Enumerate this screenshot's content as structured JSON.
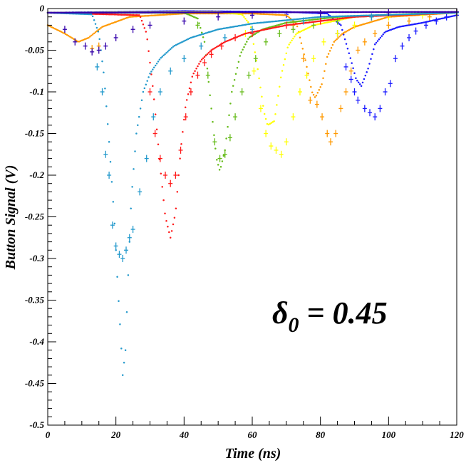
{
  "chart_data": {
    "type": "scatter",
    "title": "",
    "xlabel": "Time (ns)",
    "ylabel": "Button Signal (V)",
    "xlim": [
      0,
      120
    ],
    "ylim": [
      -0.5,
      0
    ],
    "x_ticks": [
      0,
      20,
      40,
      60,
      80,
      100,
      120
    ],
    "y_ticks": [
      0,
      -0.05,
      -0.1,
      -0.15,
      -0.2,
      -0.25,
      -0.3,
      -0.35,
      -0.4,
      -0.45,
      -0.5
    ],
    "x_tick_labels": [
      "0",
      "20",
      "40",
      "60",
      "80",
      "100",
      "120"
    ],
    "y_tick_labels": [
      "0",
      "-0.05",
      "-0.1",
      "-0.15",
      "-0.2",
      "-0.25",
      "-0.3",
      "-0.35",
      "-0.4",
      "-0.45",
      "-0.5"
    ],
    "annotation": {
      "symbol": "δ",
      "subscript": "0",
      "text": " = 0.45"
    },
    "grid": false,
    "series": [
      {
        "color": "#1a1aff",
        "curve": [
          [
            0,
            -0.005
          ],
          [
            40,
            -0.003
          ],
          [
            70,
            -0.004
          ],
          [
            82,
            -0.006
          ],
          [
            86,
            -0.02
          ],
          [
            88.5,
            -0.055
          ],
          [
            90.5,
            -0.085
          ],
          [
            92,
            -0.093
          ],
          [
            94,
            -0.072
          ],
          [
            96,
            -0.043
          ],
          [
            99,
            -0.028
          ],
          [
            103,
            -0.022
          ],
          [
            110,
            -0.017
          ],
          [
            120,
            -0.008
          ]
        ],
        "points": [
          [
            70,
            -0.007
          ],
          [
            80,
            -0.01
          ],
          [
            85,
            -0.03
          ],
          [
            87.5,
            -0.07
          ],
          [
            89,
            -0.085
          ],
          [
            90,
            -0.1
          ],
          [
            91,
            -0.11
          ],
          [
            93,
            -0.12
          ],
          [
            94.5,
            -0.125
          ],
          [
            96,
            -0.13
          ],
          [
            97.5,
            -0.12
          ],
          [
            99,
            -0.1
          ],
          [
            100.5,
            -0.09
          ],
          [
            102,
            -0.06
          ],
          [
            104,
            -0.045
          ],
          [
            106,
            -0.035
          ],
          [
            108,
            -0.027
          ],
          [
            111,
            -0.02
          ],
          [
            114,
            -0.015
          ],
          [
            117,
            -0.01
          ],
          [
            120,
            -0.008
          ]
        ]
      },
      {
        "color": "#ff9900",
        "curve": [
          [
            0,
            -0.02
          ],
          [
            5,
            -0.03
          ],
          [
            9,
            -0.04
          ],
          [
            12,
            -0.035
          ],
          [
            16,
            -0.022
          ],
          [
            24,
            -0.01
          ],
          [
            40,
            -0.006
          ],
          [
            60,
            -0.006
          ],
          [
            70,
            -0.008
          ],
          [
            73,
            -0.018
          ],
          [
            75.5,
            -0.06
          ],
          [
            77.5,
            -0.1
          ],
          [
            78.5,
            -0.107
          ],
          [
            80.5,
            -0.09
          ],
          [
            82,
            -0.058
          ],
          [
            84,
            -0.04
          ],
          [
            86.5,
            -0.03
          ],
          [
            90,
            -0.022
          ],
          [
            100,
            -0.01
          ],
          [
            120,
            -0.005
          ]
        ],
        "points": [
          [
            13,
            -0.048
          ],
          [
            15,
            -0.045
          ],
          [
            72,
            -0.02
          ],
          [
            75,
            -0.06
          ],
          [
            77,
            -0.11
          ],
          [
            79,
            -0.115
          ],
          [
            80.5,
            -0.13
          ],
          [
            82,
            -0.15
          ],
          [
            83,
            -0.16
          ],
          [
            84.5,
            -0.15
          ],
          [
            86,
            -0.12
          ],
          [
            87.5,
            -0.1
          ],
          [
            89,
            -0.075
          ],
          [
            91,
            -0.05
          ],
          [
            93,
            -0.04
          ],
          [
            96,
            -0.03
          ],
          [
            100,
            -0.02
          ],
          [
            106,
            -0.015
          ],
          [
            112,
            -0.01
          ],
          [
            120,
            -0.005
          ]
        ]
      },
      {
        "color": "#ffff00",
        "curve": [
          [
            0,
            -0.005
          ],
          [
            50,
            -0.004
          ],
          [
            57,
            -0.007
          ],
          [
            59.5,
            -0.02
          ],
          [
            61.5,
            -0.07
          ],
          [
            63.5,
            -0.125
          ],
          [
            64.5,
            -0.14
          ],
          [
            66.5,
            -0.135
          ],
          [
            68.5,
            -0.08
          ],
          [
            70.5,
            -0.045
          ],
          [
            73,
            -0.03
          ],
          [
            78,
            -0.02
          ],
          [
            90,
            -0.01
          ],
          [
            120,
            -0.004
          ]
        ],
        "points": [
          [
            58,
            -0.03
          ],
          [
            60.5,
            -0.075
          ],
          [
            62.5,
            -0.12
          ],
          [
            64,
            -0.15
          ],
          [
            65.5,
            -0.165
          ],
          [
            67,
            -0.17
          ],
          [
            68.5,
            -0.175
          ],
          [
            70,
            -0.16
          ],
          [
            72,
            -0.13
          ],
          [
            74,
            -0.1
          ],
          [
            76,
            -0.08
          ],
          [
            78,
            -0.06
          ],
          [
            81,
            -0.04
          ],
          [
            85,
            -0.03
          ],
          [
            90,
            -0.02
          ],
          [
            100,
            -0.01
          ],
          [
            110,
            -0.008
          ],
          [
            120,
            -0.005
          ]
        ]
      },
      {
        "color": "#66bb1a",
        "curve": [
          [
            0,
            -0.005
          ],
          [
            40,
            -0.005
          ],
          [
            44,
            -0.012
          ],
          [
            46,
            -0.04
          ],
          [
            48,
            -0.12
          ],
          [
            49.5,
            -0.18
          ],
          [
            50.5,
            -0.195
          ],
          [
            52,
            -0.17
          ],
          [
            54,
            -0.1
          ],
          [
            56.5,
            -0.055
          ],
          [
            59,
            -0.035
          ],
          [
            63,
            -0.025
          ],
          [
            70,
            -0.017
          ],
          [
            85,
            -0.01
          ],
          [
            120,
            -0.004
          ]
        ],
        "points": [
          [
            44,
            -0.02
          ],
          [
            47,
            -0.08
          ],
          [
            49,
            -0.16
          ],
          [
            50.5,
            -0.18
          ],
          [
            52,
            -0.175
          ],
          [
            53.5,
            -0.155
          ],
          [
            55,
            -0.13
          ],
          [
            57,
            -0.1
          ],
          [
            59,
            -0.08
          ],
          [
            61,
            -0.06
          ],
          [
            64,
            -0.04
          ],
          [
            68,
            -0.03
          ],
          [
            72,
            -0.025
          ],
          [
            78,
            -0.02
          ],
          [
            85,
            -0.015
          ],
          [
            95,
            -0.01
          ],
          [
            120,
            -0.005
          ]
        ]
      },
      {
        "color": "#ff1a1a",
        "curve": [
          [
            0,
            -0.005
          ],
          [
            27,
            -0.008
          ],
          [
            29,
            -0.03
          ],
          [
            31,
            -0.1
          ],
          [
            33,
            -0.19
          ],
          [
            34.5,
            -0.25
          ],
          [
            36,
            -0.275
          ],
          [
            37.5,
            -0.245
          ],
          [
            39,
            -0.17
          ],
          [
            40.5,
            -0.115
          ],
          [
            42.5,
            -0.08
          ],
          [
            45,
            -0.062
          ],
          [
            48,
            -0.05
          ],
          [
            52,
            -0.04
          ],
          [
            58,
            -0.03
          ],
          [
            70,
            -0.02
          ],
          [
            90,
            -0.01
          ],
          [
            120,
            -0.005
          ]
        ],
        "points": [
          [
            30,
            -0.1
          ],
          [
            31.5,
            -0.15
          ],
          [
            33,
            -0.18
          ],
          [
            34.5,
            -0.2
          ],
          [
            36,
            -0.21
          ],
          [
            37.5,
            -0.2
          ],
          [
            39,
            -0.17
          ],
          [
            40.5,
            -0.13
          ],
          [
            42,
            -0.1
          ],
          [
            44,
            -0.08
          ],
          [
            46,
            -0.065
          ],
          [
            48,
            -0.055
          ],
          [
            51,
            -0.045
          ],
          [
            55,
            -0.035
          ],
          [
            60,
            -0.03
          ],
          [
            70,
            -0.02
          ],
          [
            80,
            -0.015
          ],
          [
            95,
            -0.01
          ],
          [
            120,
            -0.005
          ]
        ]
      },
      {
        "color": "#2299cc",
        "curve": [
          [
            0,
            -0.005
          ],
          [
            13,
            -0.007
          ],
          [
            15,
            -0.03
          ],
          [
            16.5,
            -0.08
          ],
          [
            18,
            -0.16
          ],
          [
            19.5,
            -0.25
          ],
          [
            20.5,
            -0.33
          ],
          [
            21.5,
            -0.4
          ],
          [
            22,
            -0.44
          ],
          [
            22.8,
            -0.41
          ],
          [
            23.5,
            -0.33
          ],
          [
            24.5,
            -0.23
          ],
          [
            26,
            -0.15
          ],
          [
            28,
            -0.1
          ],
          [
            30,
            -0.078
          ],
          [
            33,
            -0.06
          ],
          [
            37,
            -0.045
          ],
          [
            42,
            -0.035
          ],
          [
            50,
            -0.025
          ],
          [
            60,
            -0.018
          ],
          [
            80,
            -0.01
          ],
          [
            120,
            -0.005
          ]
        ],
        "points": [
          [
            14.5,
            -0.07
          ],
          [
            16,
            -0.1
          ],
          [
            17,
            -0.175
          ],
          [
            18,
            -0.2
          ],
          [
            19,
            -0.26
          ],
          [
            20,
            -0.285
          ],
          [
            21,
            -0.295
          ],
          [
            22,
            -0.3
          ],
          [
            23,
            -0.29
          ],
          [
            24,
            -0.275
          ],
          [
            25,
            -0.265
          ],
          [
            27,
            -0.22
          ],
          [
            29,
            -0.18
          ],
          [
            31,
            -0.13
          ],
          [
            33,
            -0.1
          ],
          [
            36,
            -0.075
          ],
          [
            40,
            -0.06
          ],
          [
            45,
            -0.045
          ],
          [
            52,
            -0.035
          ],
          [
            60,
            -0.025
          ],
          [
            75,
            -0.015
          ],
          [
            95,
            -0.01
          ],
          [
            120,
            -0.005
          ]
        ]
      },
      {
        "color": "#3300aa",
        "curve": [
          [
            0,
            -0.005
          ],
          [
            120,
            -0.004
          ]
        ],
        "points": [
          [
            5,
            -0.025
          ],
          [
            8,
            -0.04
          ],
          [
            11,
            -0.045
          ],
          [
            13,
            -0.052
          ],
          [
            15,
            -0.05
          ],
          [
            17,
            -0.045
          ],
          [
            20,
            -0.035
          ],
          [
            25,
            -0.025
          ],
          [
            30,
            -0.02
          ],
          [
            40,
            -0.015
          ],
          [
            50,
            -0.01
          ],
          [
            60,
            -0.008
          ],
          [
            80,
            -0.006
          ],
          [
            100,
            -0.005
          ],
          [
            120,
            -0.004
          ]
        ]
      }
    ]
  }
}
